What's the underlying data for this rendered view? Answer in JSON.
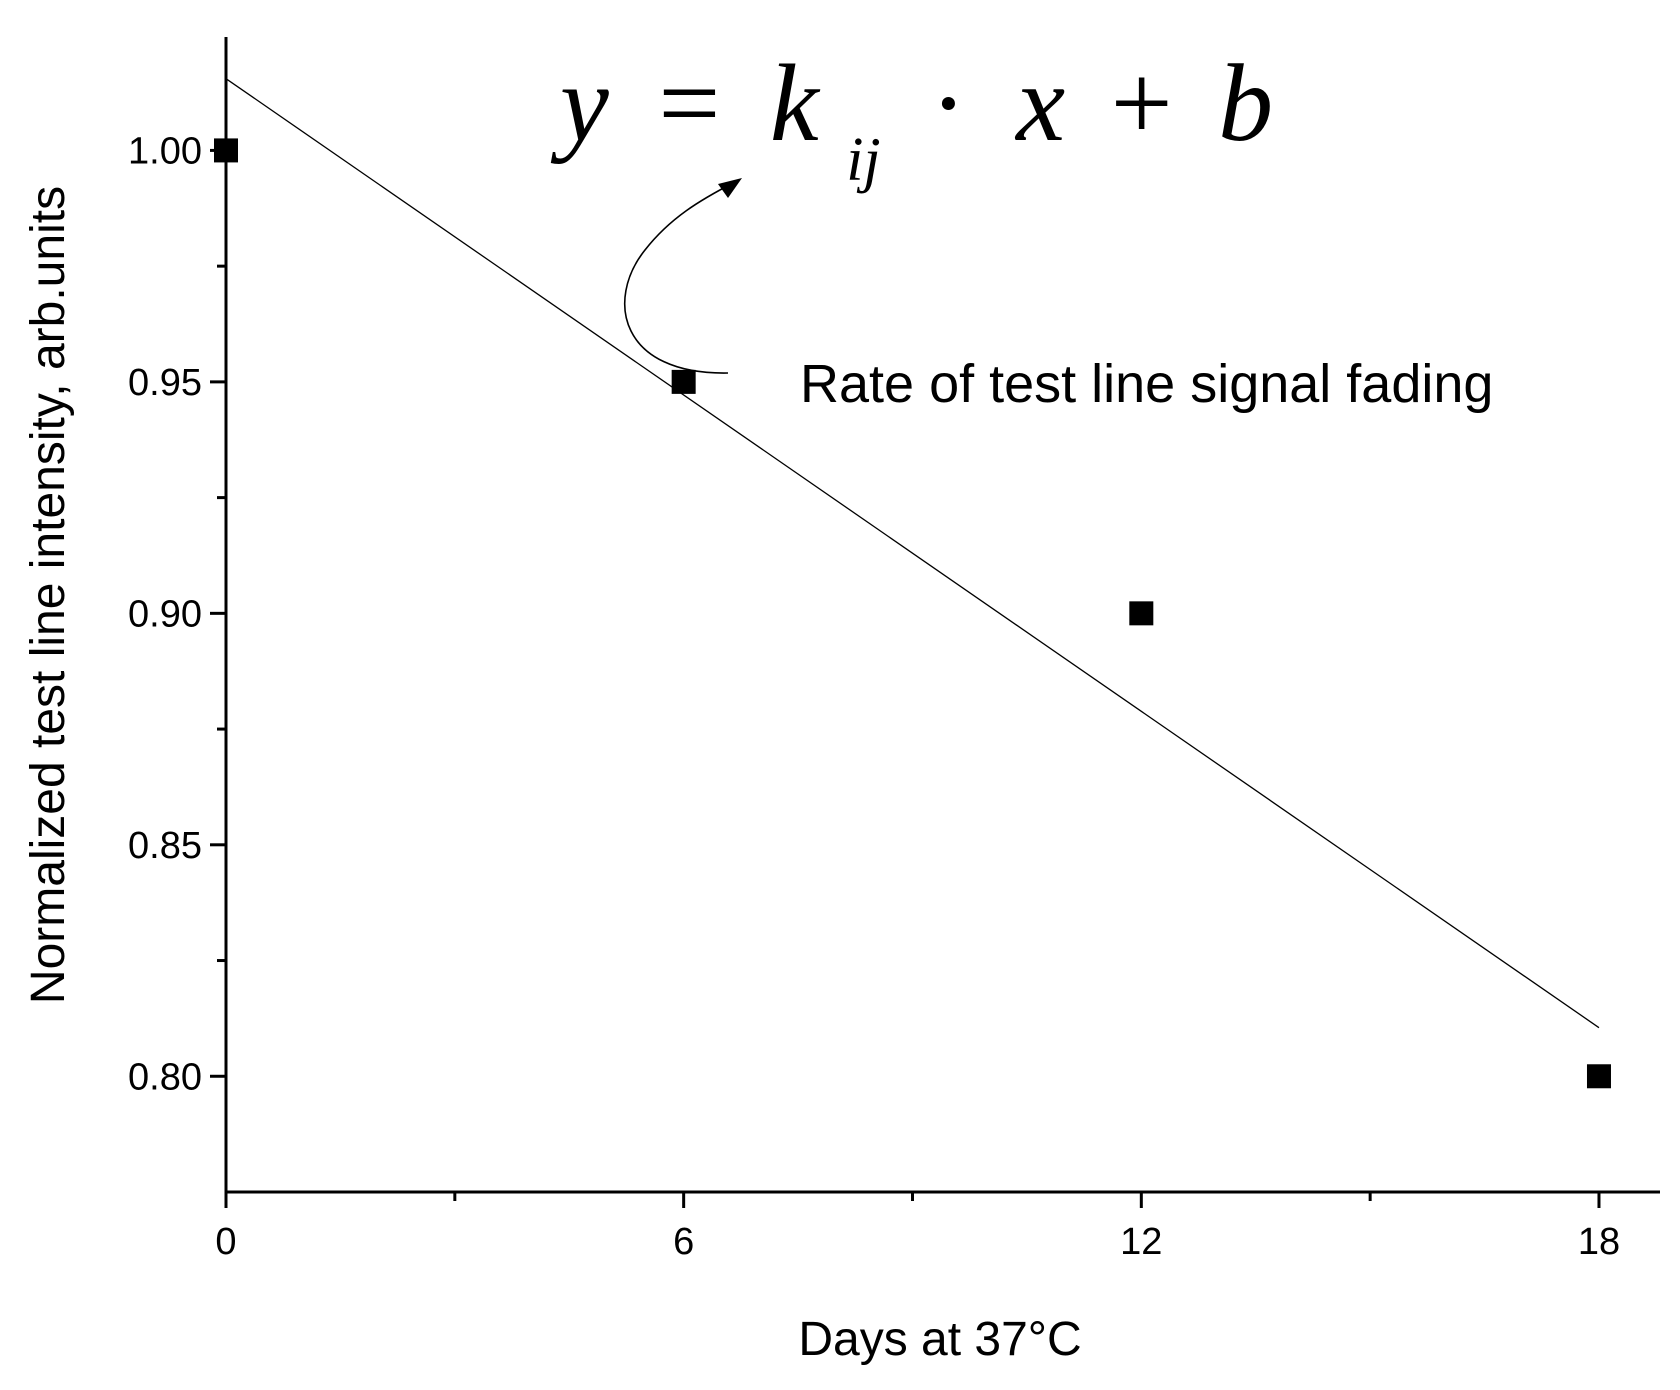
{
  "chart_data": {
    "type": "scatter",
    "xlabel": "Days at 37°C",
    "ylabel": "Normalized test line intensity, arb.units",
    "xlim": [
      0,
      18.8
    ],
    "ylim": [
      0.775,
      1.0245
    ],
    "x_ticks": [
      0,
      6,
      12,
      18
    ],
    "x_tick_labels": [
      "0",
      "6",
      "12",
      "18"
    ],
    "x_minor_ticks": [
      3,
      9,
      15
    ],
    "y_ticks": [
      0.8,
      0.85,
      0.9,
      0.95,
      1.0
    ],
    "y_tick_labels": [
      "0.80",
      "0.85",
      "0.90",
      "0.95",
      "1.00"
    ],
    "y_minor_ticks": [
      0.825,
      0.875,
      0.925,
      0.975
    ],
    "grid": false,
    "series": [
      {
        "points": {
          "x": [
            0,
            6,
            12,
            18
          ],
          "y": [
            1.0,
            0.95,
            0.9,
            0.8
          ]
        },
        "marker": "square",
        "color": "#000000"
      }
    ],
    "fit_line": {
      "x": [
        0,
        18
      ],
      "y": [
        1.0155,
        0.8105
      ],
      "color": "#000000"
    },
    "annotations": {
      "equation": {
        "y": "y",
        "equals": "=",
        "k": "k",
        "sub": "ij",
        "dot": "·",
        "x": "x",
        "plus": "+",
        "b": "b"
      },
      "rate_label": "Rate of test line signal fading"
    }
  }
}
